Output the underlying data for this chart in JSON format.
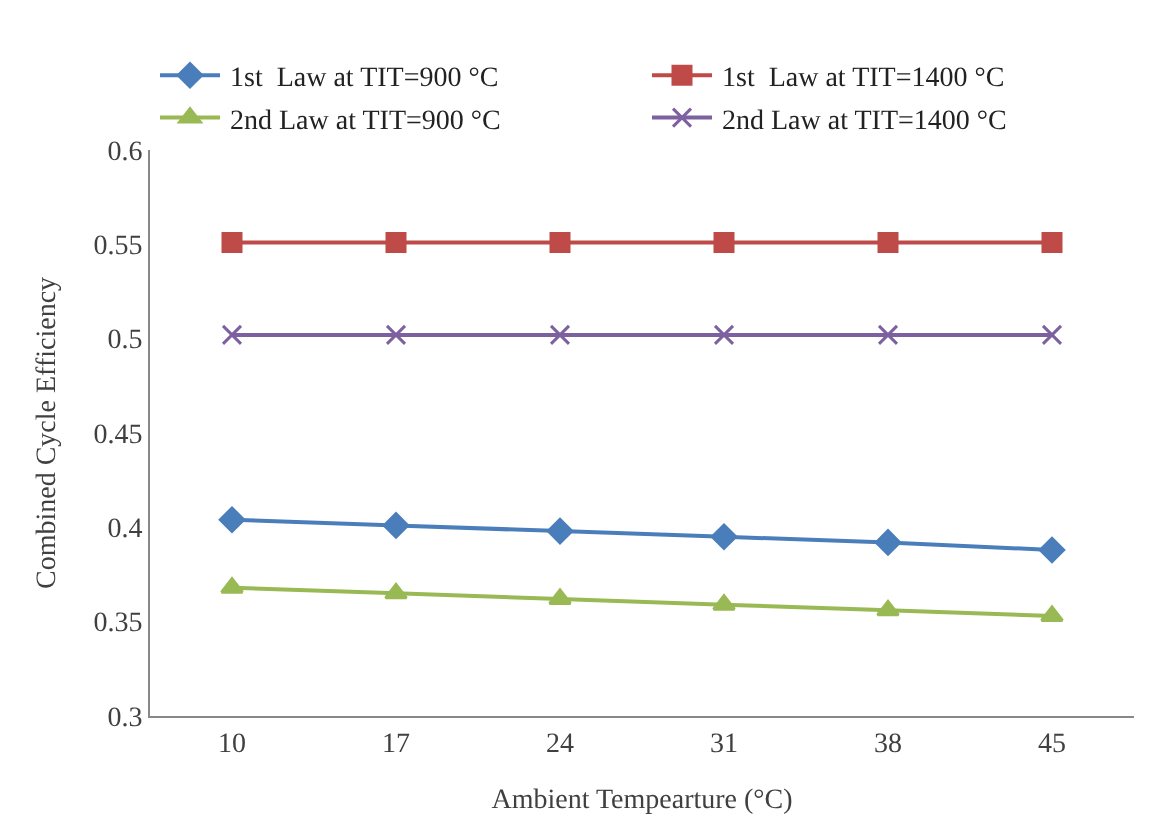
{
  "chart_data": {
    "type": "line",
    "xlabel": "Ambient Tempearture (°C)",
    "ylabel": "Combined Cycle Efficiency",
    "categories": [
      "10",
      "17",
      "24",
      "31",
      "38",
      "45"
    ],
    "series": [
      {
        "name": "1st  Law at TIT=900 °C",
        "color": "#4a7ebb",
        "marker": "diamond",
        "values": [
          0.404,
          0.401,
          0.398,
          0.395,
          0.392,
          0.388
        ]
      },
      {
        "name": "1st  Law at TIT=1400 °C",
        "color": "#be4b48",
        "marker": "square",
        "values": [
          0.551,
          0.551,
          0.551,
          0.551,
          0.551,
          0.551
        ]
      },
      {
        "name": "2nd Law at TIT=900 °C",
        "color": "#98b954",
        "marker": "triangle",
        "values": [
          0.368,
          0.365,
          0.362,
          0.359,
          0.356,
          0.353
        ]
      },
      {
        "name": "2nd Law at TIT=1400 °C",
        "color": "#7d60a0",
        "marker": "cross",
        "values": [
          0.502,
          0.502,
          0.502,
          0.502,
          0.502,
          0.502
        ]
      }
    ],
    "ylim": [
      0.3,
      0.6
    ],
    "yticks": [
      0.3,
      0.35,
      0.4,
      0.45,
      0.5,
      0.55,
      0.6
    ],
    "grid": false,
    "legend": "top",
    "line_style": "solid"
  }
}
